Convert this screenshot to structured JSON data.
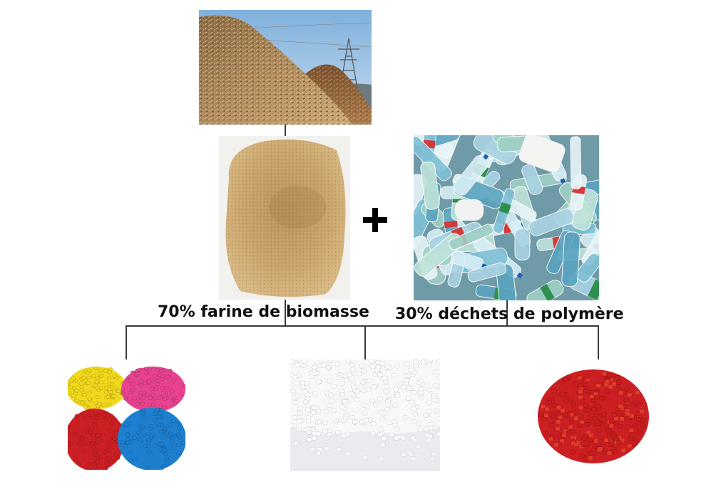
{
  "labels": {
    "biomass": "70% farine de biomasse",
    "polymer": "30% déchets de polymère"
  },
  "operator": "+",
  "images": {
    "wood_chips_pile": "wood-chips-pile-photo",
    "biomass_powder": "biomass-flour-photo",
    "plastic_bottles": "plastic-bottle-waste-photo",
    "colored_pellets": "multicolor-pellets-photo",
    "white_pellets": "white-pellets-photo",
    "red_pellets": "red-pellets-photo"
  },
  "colors": {
    "pellet_yellow": "#f2d81c",
    "pellet_pink": "#e8438f",
    "pellet_red": "#cc1f24",
    "pellet_blue": "#1d7fd0",
    "powder": "#c9a46b",
    "sky": "#9cc0e0"
  }
}
